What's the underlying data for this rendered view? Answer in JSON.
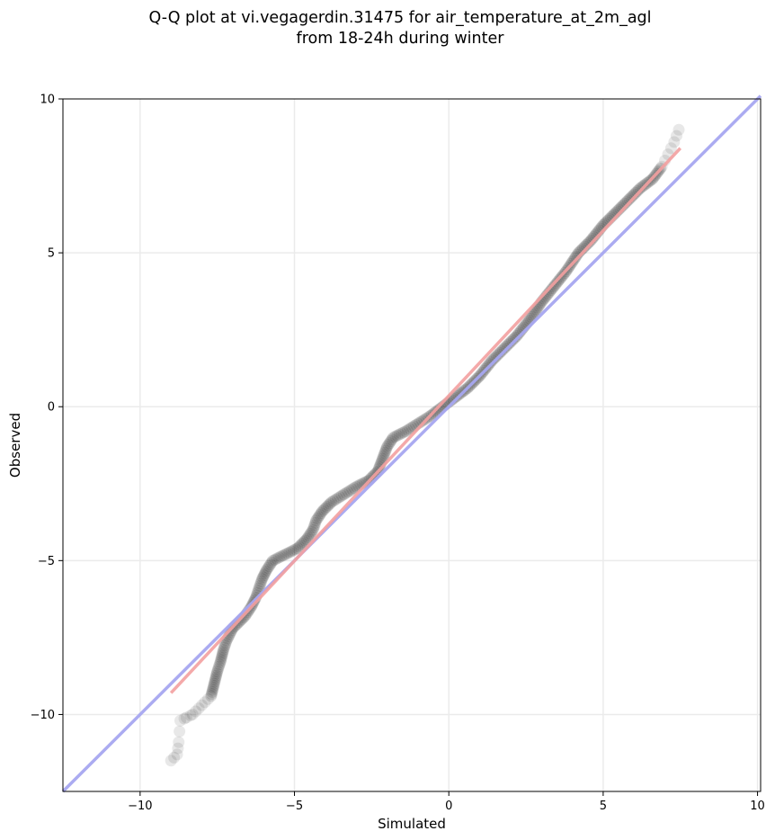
{
  "chart_data": {
    "type": "scatter",
    "title_line1": "Q-Q plot at vi.vegagerdin.31475 for air_temperature_at_2m_agl",
    "title_line2": "from 18-24h during winter",
    "xlabel": "Simulated",
    "ylabel": "Observed",
    "xlim": [
      -12.5,
      10.1
    ],
    "ylim": [
      -12.5,
      10.0
    ],
    "xticks": [
      -10,
      -5,
      0,
      5,
      10
    ],
    "yticks": [
      -10,
      -5,
      0,
      5,
      10
    ],
    "xtick_labels": [
      "−10",
      "−5",
      "0",
      "5",
      "10"
    ],
    "ytick_labels": [
      "−10",
      "−5",
      "0",
      "5",
      "10"
    ],
    "grid": true,
    "identity_line": {
      "color": "#a6a6f0",
      "points": [
        [
          -12.5,
          -12.5
        ],
        [
          10.1,
          10.1
        ]
      ]
    },
    "fit_line": {
      "color": "#f3a0a0",
      "points": [
        [
          -9.0,
          -9.3
        ],
        [
          7.5,
          8.4
        ]
      ]
    },
    "colors": {
      "points": "#000000",
      "identity": "#a6a6f0",
      "fit": "#f3a0a0",
      "grid": "#ebebeb"
    },
    "quantile_curve": [
      [
        -9.0,
        -11.5
      ],
      [
        -8.8,
        -11.3
      ],
      [
        -8.75,
        -10.9
      ],
      [
        -8.7,
        -10.2
      ],
      [
        -8.5,
        -10.1
      ],
      [
        -8.3,
        -10.0
      ],
      [
        -8.1,
        -9.8
      ],
      [
        -7.9,
        -9.6
      ],
      [
        -7.7,
        -9.4
      ],
      [
        -7.6,
        -9.0
      ],
      [
        -7.5,
        -8.6
      ],
      [
        -7.4,
        -8.3
      ],
      [
        -7.3,
        -7.9
      ],
      [
        -7.2,
        -7.6
      ],
      [
        -7.0,
        -7.2
      ],
      [
        -6.8,
        -7.0
      ],
      [
        -6.6,
        -6.8
      ],
      [
        -6.4,
        -6.5
      ],
      [
        -6.25,
        -6.2
      ],
      [
        -6.15,
        -5.9
      ],
      [
        -6.05,
        -5.6
      ],
      [
        -5.9,
        -5.3
      ],
      [
        -5.7,
        -5.0
      ],
      [
        -5.3,
        -4.8
      ],
      [
        -4.9,
        -4.6
      ],
      [
        -4.6,
        -4.3
      ],
      [
        -4.4,
        -4.0
      ],
      [
        -4.3,
        -3.7
      ],
      [
        -4.1,
        -3.4
      ],
      [
        -3.8,
        -3.1
      ],
      [
        -3.4,
        -2.85
      ],
      [
        -3.0,
        -2.6
      ],
      [
        -2.6,
        -2.4
      ],
      [
        -2.3,
        -2.1
      ],
      [
        -2.15,
        -1.7
      ],
      [
        -2.0,
        -1.3
      ],
      [
        -1.8,
        -1.0
      ],
      [
        -1.4,
        -0.8
      ],
      [
        -1.0,
        -0.55
      ],
      [
        -0.6,
        -0.3
      ],
      [
        -0.2,
        0.0
      ],
      [
        0.2,
        0.3
      ],
      [
        0.6,
        0.6
      ],
      [
        1.0,
        1.0
      ],
      [
        1.4,
        1.5
      ],
      [
        1.8,
        1.9
      ],
      [
        2.2,
        2.3
      ],
      [
        2.6,
        2.8
      ],
      [
        3.0,
        3.4
      ],
      [
        3.4,
        3.9
      ],
      [
        3.8,
        4.4
      ],
      [
        4.2,
        5.0
      ],
      [
        4.6,
        5.4
      ],
      [
        5.0,
        5.9
      ],
      [
        5.4,
        6.3
      ],
      [
        5.8,
        6.7
      ],
      [
        6.2,
        7.1
      ],
      [
        6.6,
        7.4
      ],
      [
        6.9,
        7.8
      ],
      [
        7.1,
        8.2
      ],
      [
        7.3,
        8.6
      ],
      [
        7.45,
        9.0
      ]
    ]
  }
}
